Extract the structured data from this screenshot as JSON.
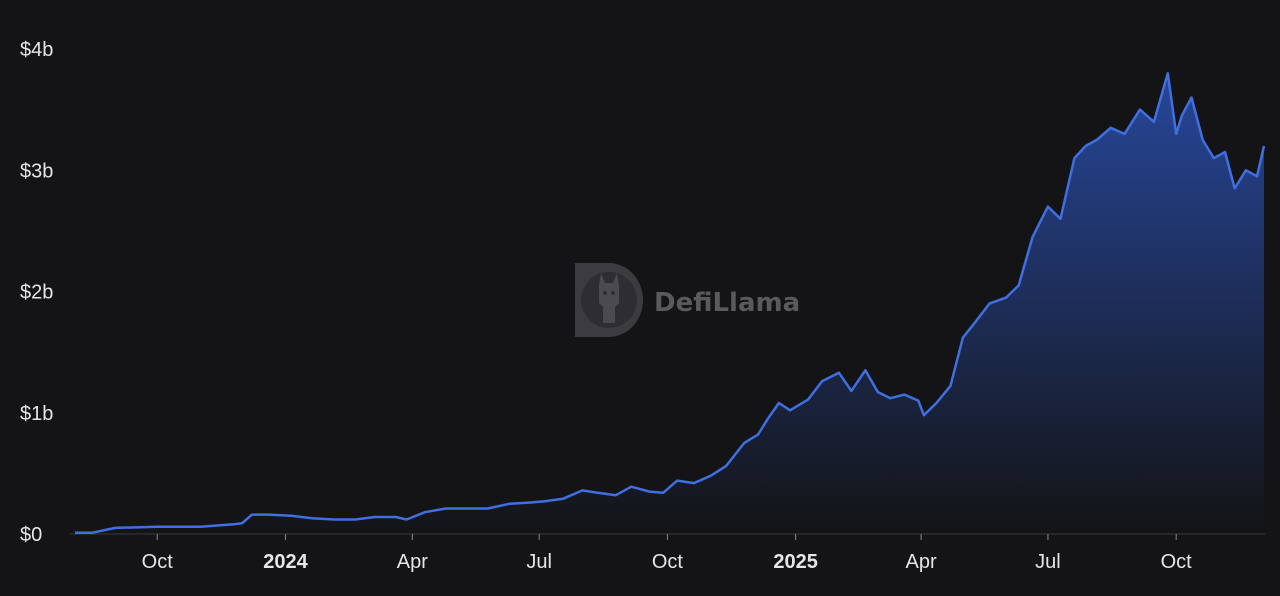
{
  "watermark": {
    "text": "DefiLlama",
    "logo_icon": "llama-logo-icon"
  },
  "colors": {
    "background": "#141416",
    "line": "#3f6fe0",
    "area_top": "#2a4fb0",
    "axis": "#3a3a3e",
    "text": "#e6e6e6"
  },
  "chart_data": {
    "type": "area",
    "title": "",
    "xlabel": "",
    "ylabel": "",
    "grid": false,
    "legend": "none",
    "x_ticks": [
      {
        "label": "Oct",
        "date": "2023-10-01",
        "bold": false
      },
      {
        "label": "2024",
        "date": "2024-01-01",
        "bold": true
      },
      {
        "label": "Apr",
        "date": "2024-04-01",
        "bold": false
      },
      {
        "label": "Jul",
        "date": "2024-07-01",
        "bold": false
      },
      {
        "label": "Oct",
        "date": "2024-10-01",
        "bold": false
      },
      {
        "label": "2025",
        "date": "2025-01-01",
        "bold": true
      },
      {
        "label": "Apr",
        "date": "2025-04-01",
        "bold": false
      },
      {
        "label": "Jul",
        "date": "2025-07-01",
        "bold": false
      },
      {
        "label": "Oct",
        "date": "2025-10-01",
        "bold": false
      }
    ],
    "y_ticks": [
      {
        "label": "$0",
        "value": 0
      },
      {
        "label": "$1b",
        "value": 1
      },
      {
        "label": "$2b",
        "value": 2
      },
      {
        "label": "$3b",
        "value": 3
      },
      {
        "label": "$4b",
        "value": 4
      }
    ],
    "xlim": [
      "2023-08-03",
      "2025-12-03"
    ],
    "ylim": [
      0,
      4
    ],
    "y_unit": "billion USD",
    "series": [
      {
        "x": [
          "2023-08-03",
          "2023-08-15",
          "2023-09-01",
          "2023-10-01",
          "2023-11-01",
          "2023-11-25",
          "2023-12-01",
          "2023-12-08",
          "2023-12-20",
          "2024-01-05",
          "2024-01-20",
          "2024-02-05",
          "2024-02-20",
          "2024-03-05",
          "2024-03-20",
          "2024-03-28",
          "2024-04-10",
          "2024-04-25",
          "2024-05-10",
          "2024-05-25",
          "2024-06-10",
          "2024-06-25",
          "2024-07-05",
          "2024-07-18",
          "2024-08-01",
          "2024-08-12",
          "2024-08-25",
          "2024-09-05",
          "2024-09-18",
          "2024-09-28",
          "2024-10-08",
          "2024-10-20",
          "2024-11-01",
          "2024-11-12",
          "2024-11-25",
          "2024-12-05",
          "2024-12-12",
          "2024-12-20",
          "2024-12-28",
          "2025-01-10",
          "2025-01-20",
          "2025-02-01",
          "2025-02-10",
          "2025-02-20",
          "2025-03-01",
          "2025-03-10",
          "2025-03-20",
          "2025-03-30",
          "2025-04-03",
          "2025-04-12",
          "2025-04-22",
          "2025-05-01",
          "2025-05-10",
          "2025-05-20",
          "2025-06-01",
          "2025-06-10",
          "2025-06-20",
          "2025-07-01",
          "2025-07-10",
          "2025-07-20",
          "2025-07-28",
          "2025-08-05",
          "2025-08-15",
          "2025-08-25",
          "2025-09-05",
          "2025-09-15",
          "2025-09-25",
          "2025-10-01",
          "2025-10-05",
          "2025-10-12",
          "2025-10-20",
          "2025-10-28",
          "2025-11-05",
          "2025-11-12",
          "2025-11-20",
          "2025-11-28",
          "2025-12-03"
        ],
        "values": [
          0.01,
          0.01,
          0.05,
          0.06,
          0.06,
          0.08,
          0.09,
          0.16,
          0.16,
          0.15,
          0.13,
          0.12,
          0.12,
          0.14,
          0.14,
          0.12,
          0.18,
          0.21,
          0.21,
          0.21,
          0.25,
          0.26,
          0.27,
          0.29,
          0.36,
          0.34,
          0.32,
          0.39,
          0.35,
          0.34,
          0.44,
          0.42,
          0.48,
          0.56,
          0.75,
          0.82,
          0.95,
          1.08,
          1.02,
          1.11,
          1.26,
          1.33,
          1.18,
          1.35,
          1.17,
          1.12,
          1.15,
          1.1,
          0.98,
          1.08,
          1.22,
          1.62,
          1.75,
          1.9,
          1.95,
          2.05,
          2.45,
          2.7,
          2.6,
          3.1,
          3.2,
          3.25,
          3.35,
          3.3,
          3.5,
          3.4,
          3.8,
          3.3,
          3.45,
          3.6,
          3.25,
          3.1,
          3.15,
          2.85,
          3.0,
          2.95,
          3.2
        ]
      }
    ]
  }
}
